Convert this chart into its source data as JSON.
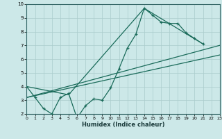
{
  "xlabel": "Humidex (Indice chaleur)",
  "xlim": [
    0,
    23
  ],
  "ylim": [
    2,
    10
  ],
  "xticks": [
    0,
    1,
    2,
    3,
    4,
    5,
    6,
    7,
    8,
    9,
    10,
    11,
    12,
    13,
    14,
    15,
    16,
    17,
    18,
    19,
    20,
    21,
    22,
    23
  ],
  "yticks": [
    2,
    3,
    4,
    5,
    6,
    7,
    8,
    9,
    10
  ],
  "bg_color": "#cce8e8",
  "grid_color": "#aacccc",
  "line_color": "#1a6b5a",
  "line1_x": [
    0,
    1,
    2,
    3,
    4,
    5,
    6,
    7,
    8,
    9,
    10,
    11,
    12,
    13,
    14,
    15,
    16,
    17,
    18,
    19,
    20,
    21
  ],
  "line1_y": [
    4.0,
    3.2,
    2.4,
    2.0,
    3.2,
    3.5,
    1.7,
    2.6,
    3.1,
    3.0,
    3.9,
    5.3,
    6.8,
    7.8,
    9.7,
    9.2,
    8.7,
    8.6,
    8.6,
    7.9,
    7.5,
    7.1
  ],
  "line2_x": [
    0,
    5,
    14,
    21
  ],
  "line2_y": [
    4.0,
    3.4,
    9.7,
    7.1
  ],
  "line3_x": [
    0,
    23
  ],
  "line3_y": [
    3.2,
    7.0
  ],
  "line4_x": [
    0,
    23
  ],
  "line4_y": [
    3.2,
    6.3
  ]
}
